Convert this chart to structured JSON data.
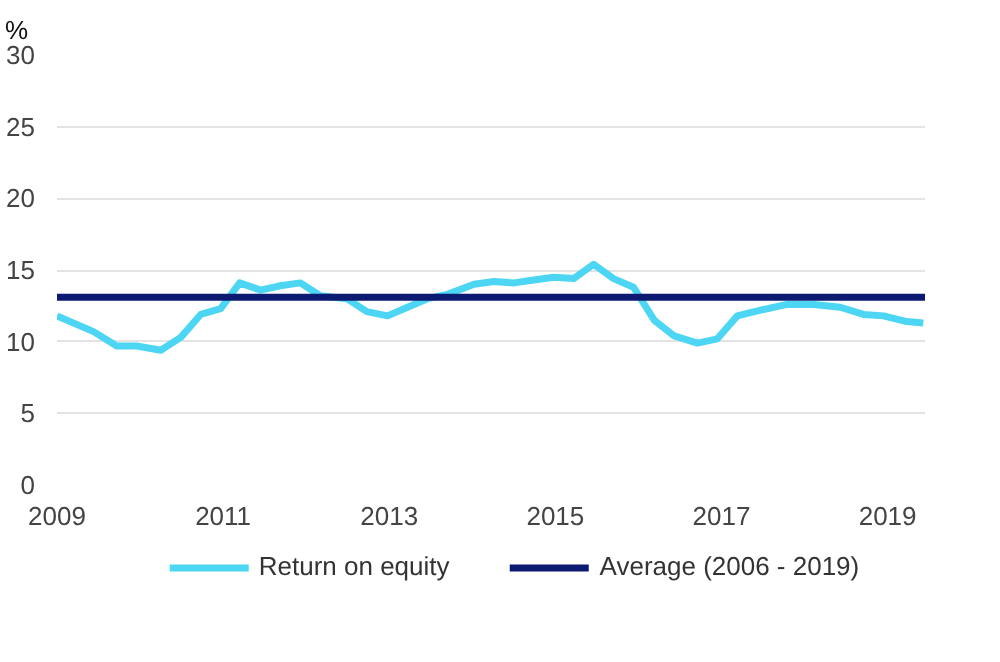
{
  "chart_data": {
    "type": "line",
    "ylabel": "%",
    "x": [
      2009.0,
      2009.44,
      2009.72,
      2009.96,
      2010.25,
      2010.49,
      2010.73,
      2010.97,
      2011.2,
      2011.45,
      2011.69,
      2011.93,
      2012.17,
      2012.49,
      2012.73,
      2012.98,
      2013.22,
      2013.46,
      2013.7,
      2014.02,
      2014.26,
      2014.5,
      2014.74,
      2014.98,
      2015.22,
      2015.46,
      2015.7,
      2015.94,
      2016.19,
      2016.43,
      2016.71,
      2016.95,
      2017.19,
      2017.47,
      2017.79,
      2018.11,
      2018.43,
      2018.71,
      2018.95,
      2019.23,
      2019.43
    ],
    "series": [
      {
        "name": "Return on equity",
        "color": "#4dd6f4",
        "values": [
          11.8,
          10.7,
          9.7,
          9.7,
          9.4,
          10.3,
          11.9,
          12.3,
          14.1,
          13.6,
          13.9,
          14.1,
          13.2,
          13.0,
          12.1,
          11.8,
          12.4,
          13.0,
          13.3,
          14.0,
          14.2,
          14.1,
          14.3,
          14.5,
          14.4,
          15.4,
          14.4,
          13.8,
          11.5,
          10.4,
          9.9,
          10.2,
          11.8,
          12.2,
          12.6,
          12.6,
          12.4,
          11.9,
          11.8,
          11.4,
          11.3
        ]
      }
    ],
    "ref_lines": [
      {
        "axis": "y",
        "value": 13.1,
        "label": "Average (2006 - 2019)",
        "color": "#0d1a72"
      }
    ],
    "xlim": [
      2009,
      2019.45
    ],
    "xticks": [
      2009,
      2011,
      2013,
      2015,
      2017,
      2019
    ],
    "ylim": [
      0,
      30
    ],
    "yticks": [
      0,
      5,
      10,
      15,
      20,
      25,
      30
    ],
    "grid": "y",
    "legend": "bottom",
    "line_style": "solid",
    "marker": "none"
  }
}
